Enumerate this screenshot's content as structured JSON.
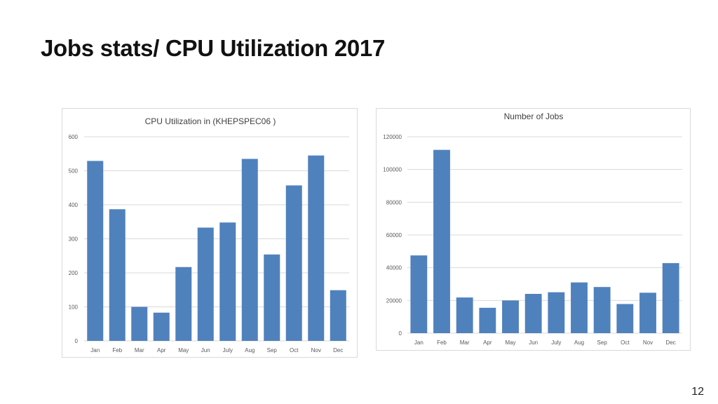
{
  "slide": {
    "title": "Jobs stats/ CPU Utilization 2017",
    "page_number": "12"
  },
  "colors": {
    "bar": "#4f81bd",
    "grid": "#d9d9d9",
    "tick_text": "#595959",
    "title_text": "#404040"
  },
  "chart_data": [
    {
      "type": "bar",
      "title": "CPU Utilization in (KHEPSPEC06 )",
      "categories": [
        "Jan",
        "Feb",
        "Mar",
        "Apr",
        "May",
        "Jun",
        "July",
        "Aug",
        "Sep",
        "Oct",
        "Nov",
        "Dec"
      ],
      "values": [
        529,
        387,
        100,
        83,
        217,
        333,
        348,
        535,
        254,
        457,
        545,
        149
      ],
      "ylim": [
        0,
        600
      ],
      "yticks": [
        "0",
        "100",
        "200",
        "300",
        "400",
        "500",
        "600"
      ],
      "grid": true,
      "legend": "none"
    },
    {
      "type": "bar",
      "title": "Number of Jobs",
      "categories": [
        "Jan",
        "Feb",
        "Mar",
        "Apr",
        "May",
        "Jun",
        "July",
        "Aug",
        "Sep",
        "Oct",
        "Nov",
        "Dec"
      ],
      "values": [
        47500,
        112000,
        21800,
        15500,
        20000,
        24000,
        25000,
        31000,
        28200,
        17800,
        24700,
        42800
      ],
      "ylim": [
        0,
        120000
      ],
      "yticks": [
        "0",
        "20000",
        "40000",
        "60000",
        "80000",
        "100000",
        "120000"
      ],
      "grid": true,
      "legend": "none"
    }
  ]
}
